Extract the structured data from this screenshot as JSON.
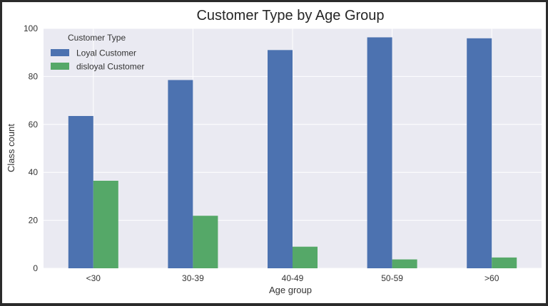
{
  "chart_data": {
    "type": "bar",
    "title": "Customer Type by Age Group",
    "xlabel": "Age group",
    "ylabel": "Class count",
    "categories": [
      "<30",
      "30-39",
      "40-49",
      "50-59",
      ">60"
    ],
    "series": [
      {
        "name": "Loyal Customer",
        "color": "#4c72b0",
        "values": [
          63.5,
          78.5,
          91,
          96.3,
          95.9
        ]
      },
      {
        "name": "disloyal Customer",
        "color": "#55a868",
        "values": [
          36.5,
          21.9,
          9.0,
          3.7,
          4.5
        ]
      }
    ],
    "ylim": [
      0,
      100
    ],
    "yticks": [
      0,
      20,
      40,
      60,
      80,
      100
    ],
    "grid": true,
    "background": "#eaeaf2",
    "legend": {
      "title": "Customer Type",
      "placement": "top-left"
    }
  }
}
